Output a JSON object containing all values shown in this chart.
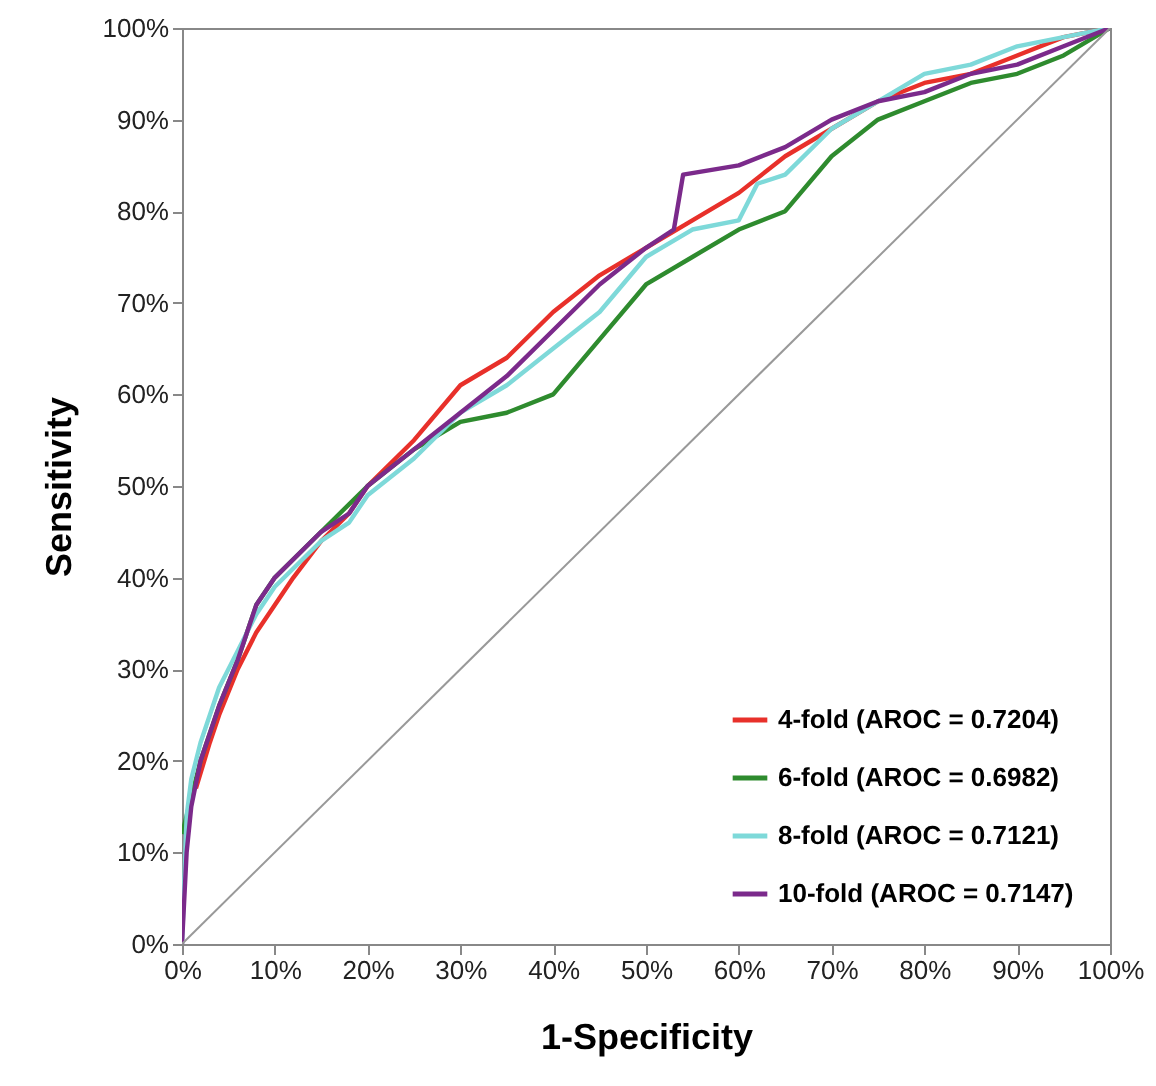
{
  "chart_data": {
    "type": "line",
    "xlabel": "1-Specificity",
    "ylabel": "Sensitivity",
    "xlim": [
      0,
      100
    ],
    "ylim": [
      0,
      100
    ],
    "xticks": [
      {
        "value": 0,
        "label": "0%"
      },
      {
        "value": 10,
        "label": "10%"
      },
      {
        "value": 20,
        "label": "20%"
      },
      {
        "value": 30,
        "label": "30%"
      },
      {
        "value": 40,
        "label": "40%"
      },
      {
        "value": 50,
        "label": "50%"
      },
      {
        "value": 60,
        "label": "60%"
      },
      {
        "value": 70,
        "label": "70%"
      },
      {
        "value": 80,
        "label": "80%"
      },
      {
        "value": 90,
        "label": "90%"
      },
      {
        "value": 100,
        "label": "100%"
      }
    ],
    "yticks": [
      {
        "value": 0,
        "label": "0%"
      },
      {
        "value": 10,
        "label": "10%"
      },
      {
        "value": 20,
        "label": "20%"
      },
      {
        "value": 30,
        "label": "30%"
      },
      {
        "value": 40,
        "label": "40%"
      },
      {
        "value": 50,
        "label": "50%"
      },
      {
        "value": 60,
        "label": "60%"
      },
      {
        "value": 70,
        "label": "70%"
      },
      {
        "value": 80,
        "label": "80%"
      },
      {
        "value": 90,
        "label": "90%"
      },
      {
        "value": 100,
        "label": "100%"
      }
    ],
    "grid": false,
    "legend": "bottom right",
    "marker": "none",
    "line_style": "solid",
    "series": [
      {
        "name": "4-fold (AROC = 0.7204)",
        "color": "#e8302a",
        "x": [
          1.5,
          3,
          4,
          6,
          8,
          10,
          12,
          15,
          18,
          20,
          25,
          30,
          35,
          40,
          45,
          50,
          55,
          60,
          65,
          70,
          75,
          80,
          85,
          90,
          95,
          100
        ],
        "values": [
          17,
          22,
          25,
          30,
          34,
          37,
          40,
          44,
          47,
          50,
          55,
          61,
          64,
          69,
          73,
          76,
          79,
          82,
          86,
          89,
          92,
          94,
          95,
          97,
          99,
          100
        ]
      },
      {
        "name": "6-fold (AROC = 0.6982)",
        "color": "#2e8b2e",
        "x": [
          0,
          1,
          2,
          4,
          6,
          8,
          10,
          12,
          15,
          18,
          20,
          25,
          30,
          35,
          40,
          45,
          50,
          55,
          60,
          65,
          70,
          75,
          80,
          85,
          90,
          95,
          100
        ],
        "values": [
          12,
          16,
          20,
          26,
          31,
          37,
          40,
          42,
          45,
          48,
          50,
          54,
          57,
          58,
          60,
          66,
          72,
          75,
          78,
          80,
          86,
          90,
          92,
          94,
          95,
          97,
          100
        ]
      },
      {
        "name": "8-fold (AROC = 0.7121)",
        "color": "#7ed9d9",
        "x": [
          0,
          0.5,
          1,
          2,
          4,
          6,
          8,
          10,
          15,
          18,
          20,
          25,
          30,
          35,
          40,
          45,
          50,
          55,
          60,
          62,
          65,
          70,
          75,
          80,
          85,
          90,
          95,
          100
        ],
        "values": [
          0,
          14,
          18,
          22,
          28,
          32,
          36,
          39,
          44,
          46,
          49,
          53,
          58,
          61,
          65,
          69,
          75,
          78,
          79,
          83,
          84,
          89,
          92,
          95,
          96,
          98,
          99,
          100
        ]
      },
      {
        "name": "10-fold (AROC = 0.7147)",
        "color": "#7b2a8b",
        "x": [
          0,
          0.5,
          1,
          2,
          4,
          6,
          8,
          10,
          15,
          18,
          20,
          25,
          30,
          35,
          40,
          45,
          50,
          53,
          54,
          60,
          65,
          70,
          75,
          80,
          85,
          90,
          95,
          100
        ],
        "values": [
          0,
          10,
          15,
          20,
          26,
          31,
          37,
          40,
          45,
          47,
          50,
          54,
          58,
          62,
          67,
          72,
          76,
          78,
          84,
          85,
          87,
          90,
          92,
          93,
          95,
          96,
          98,
          100
        ]
      },
      {
        "color": "#999999",
        "x": [
          0,
          100
        ],
        "values": [
          0,
          100
        ]
      }
    ]
  }
}
